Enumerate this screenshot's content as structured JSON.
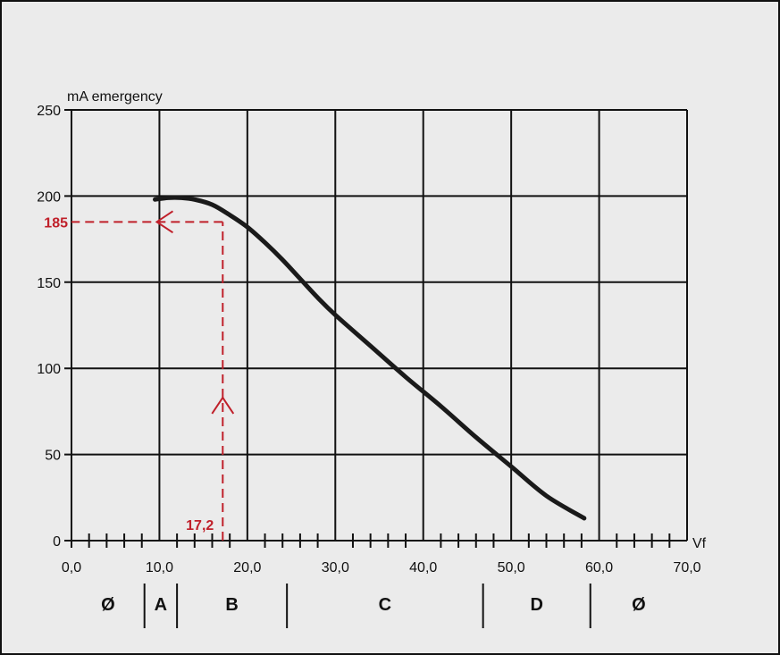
{
  "chart_data": {
    "type": "line",
    "xlabel": "Vf",
    "ylabel": "mA emergency",
    "xlim": [
      0,
      70
    ],
    "ylim": [
      0,
      250
    ],
    "x_ticks": [
      "0,0",
      "10,0",
      "20,0",
      "30,0",
      "40,0",
      "50,0",
      "60,0",
      "70,0"
    ],
    "y_ticks": [
      "0",
      "50",
      "100",
      "150",
      "200",
      "250"
    ],
    "grid": true,
    "series": [
      {
        "x": [
          9.5,
          11,
          12.5,
          14,
          16,
          18,
          20,
          22,
          24,
          26,
          28,
          30,
          34,
          38,
          42,
          46,
          50,
          54,
          58.3
        ],
        "y": [
          198,
          199,
          199,
          198,
          195,
          189,
          182,
          173,
          163,
          152,
          141,
          131,
          113,
          95,
          78,
          60,
          43,
          26,
          13
        ]
      }
    ],
    "annotation": {
      "x": 17.2,
      "y": 185,
      "x_label": "17,2",
      "y_label": "185",
      "color": "#c0202a"
    },
    "zones": [
      {
        "label": "Ø",
        "from": 0,
        "to": 8.3
      },
      {
        "label": "A",
        "from": 8.3,
        "to": 12
      },
      {
        "label": "B",
        "from": 12,
        "to": 24.5
      },
      {
        "label": "C",
        "from": 24.5,
        "to": 46.8
      },
      {
        "label": "D",
        "from": 46.8,
        "to": 59
      },
      {
        "label": "Ø",
        "from": 59,
        "to": 70
      }
    ],
    "line_color": "#1a1a1a",
    "grid_color": "#111111"
  }
}
